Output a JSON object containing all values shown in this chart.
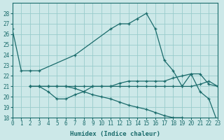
{
  "background_color": "#cce8e8",
  "grid_color": "#99cccc",
  "line_color": "#1a6b6b",
  "xlabel": "Humidex (Indice chaleur)",
  "ylim": [
    18,
    29
  ],
  "xlim": [
    0,
    23
  ],
  "yticks": [
    18,
    19,
    20,
    21,
    22,
    23,
    24,
    25,
    26,
    27,
    28
  ],
  "xticks": [
    0,
    1,
    2,
    3,
    4,
    5,
    6,
    7,
    8,
    9,
    10,
    11,
    12,
    13,
    14,
    15,
    16,
    17,
    18,
    19,
    20,
    21,
    22,
    23
  ],
  "curves": [
    {
      "x": [
        0,
        1,
        2,
        3,
        7,
        11,
        12,
        13,
        14,
        15,
        16,
        17,
        18,
        19,
        20,
        21,
        22,
        23
      ],
      "y": [
        26.5,
        22.5,
        22.5,
        22.5,
        24.0,
        26.5,
        27.0,
        27.0,
        27.5,
        28.0,
        26.5,
        23.5,
        22.5,
        21.0,
        22.2,
        20.5,
        19.8,
        17.5
      ]
    },
    {
      "x": [
        2,
        3,
        4,
        5,
        6,
        7,
        8,
        9,
        10,
        11,
        12,
        13,
        14,
        15,
        16,
        17,
        18,
        19,
        20,
        21,
        22,
        23
      ],
      "y": [
        21.0,
        21.0,
        21.0,
        21.0,
        21.0,
        21.0,
        21.0,
        21.0,
        21.0,
        21.0,
        21.0,
        21.0,
        21.0,
        21.0,
        21.0,
        21.0,
        21.0,
        21.0,
        21.0,
        21.2,
        21.5,
        21.0
      ]
    },
    {
      "x": [
        2,
        3,
        4,
        5,
        6,
        7,
        8,
        9,
        10,
        11,
        12,
        13,
        14,
        15,
        16,
        17,
        18,
        19,
        20,
        21,
        22,
        23
      ],
      "y": [
        21.0,
        21.0,
        20.5,
        19.8,
        19.8,
        20.2,
        20.5,
        21.0,
        21.0,
        21.0,
        21.3,
        21.5,
        21.5,
        21.5,
        21.5,
        21.5,
        21.8,
        22.0,
        22.2,
        22.2,
        21.2,
        21.0
      ]
    },
    {
      "x": [
        2,
        3,
        4,
        5,
        6,
        7,
        8,
        9,
        10,
        11,
        12,
        13,
        14,
        15,
        16,
        17,
        18,
        19,
        20,
        21,
        22,
        23
      ],
      "y": [
        21.0,
        21.0,
        21.0,
        21.0,
        21.0,
        20.8,
        20.5,
        20.2,
        20.0,
        19.8,
        19.5,
        19.2,
        19.0,
        18.8,
        18.5,
        18.2,
        18.0,
        18.0,
        17.8,
        17.8,
        17.8,
        17.5
      ]
    }
  ]
}
